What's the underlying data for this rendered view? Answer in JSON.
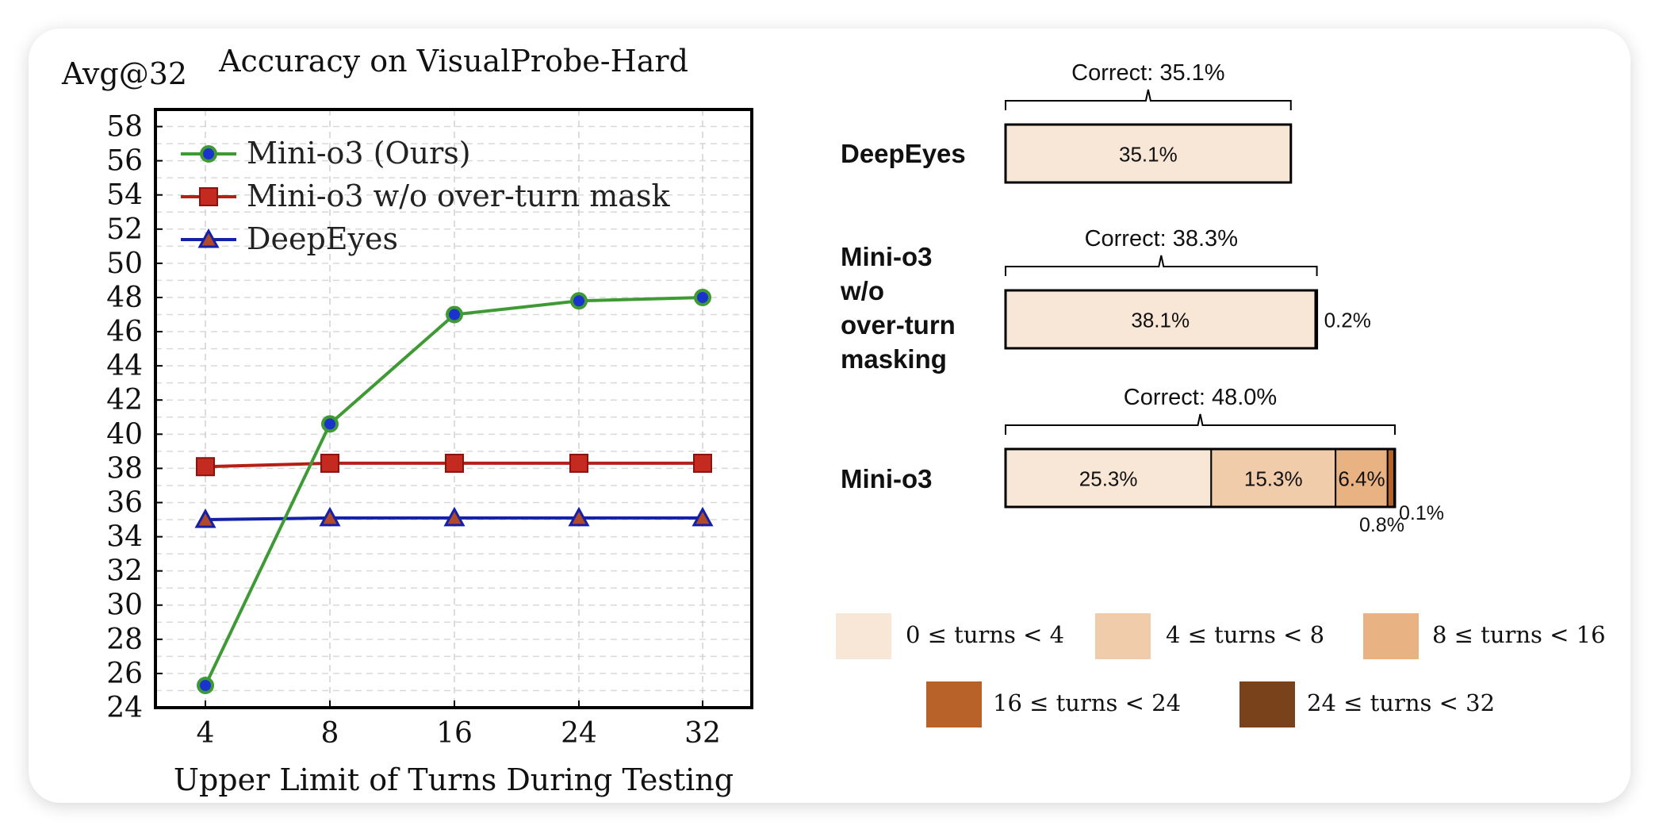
{
  "chart_data": [
    {
      "type": "line",
      "title": "Accuracy on VisualProbe-Hard",
      "ylabel": "Avg@32",
      "xlabel": "Upper Limit of Turns During Testing",
      "categories": [
        "4",
        "8",
        "16",
        "24",
        "32"
      ],
      "ylim": [
        24,
        59
      ],
      "yticks": [
        24,
        26,
        28,
        30,
        32,
        34,
        36,
        38,
        40,
        42,
        44,
        46,
        48,
        50,
        52,
        54,
        56,
        58
      ],
      "grid": true,
      "legend_position": "top-left",
      "series": [
        {
          "name": "Mini-o3 (Ours)",
          "values": [
            25.3,
            40.6,
            47.0,
            47.8,
            48.0
          ],
          "color": "#3f9a35",
          "marker": "circle",
          "marker_fill": "#1a33cc"
        },
        {
          "name": "Mini-o3 w/o over-turn mask",
          "values": [
            38.1,
            38.3,
            38.3,
            38.3,
            38.3
          ],
          "color": "#b32017",
          "marker": "square",
          "marker_fill": "#c42a1f"
        },
        {
          "name": "DeepEyes",
          "values": [
            35.0,
            35.1,
            35.1,
            35.1,
            35.1
          ],
          "color": "#1420a8",
          "marker": "triangle",
          "marker_fill": "#b04a2a"
        }
      ]
    },
    {
      "type": "bar",
      "orientation": "horizontal",
      "stacked": true,
      "xlim": [
        0,
        48.1
      ],
      "bins": [
        "0 ≤ turns < 4",
        "4 ≤ turns < 8",
        "8 ≤ turns < 16",
        "16 ≤ turns < 24",
        "24 ≤ turns < 32"
      ],
      "colors": [
        "#f8e6d6",
        "#f0ccaa",
        "#e8b283",
        "#b8622a",
        "#7a421b"
      ],
      "rows": [
        {
          "label_lines": [
            "DeepEyes"
          ],
          "correct_label": "Correct: 35.1%",
          "segments": [
            {
              "bin": 0,
              "value": 35.1,
              "label": "35.1%",
              "outside": false
            }
          ]
        },
        {
          "label_lines": [
            "Mini-o3",
            "w/o",
            "over-turn",
            "masking"
          ],
          "correct_label": "Correct: 38.3%",
          "segments": [
            {
              "bin": 0,
              "value": 38.1,
              "label": "38.1%",
              "outside": false
            },
            {
              "bin": 1,
              "value": 0.2,
              "label": "0.2%",
              "outside": true
            }
          ]
        },
        {
          "label_lines": [
            "Mini-o3"
          ],
          "correct_label": "Correct: 48.0%",
          "segments": [
            {
              "bin": 0,
              "value": 25.3,
              "label": "25.3%",
              "outside": false
            },
            {
              "bin": 1,
              "value": 15.3,
              "label": "15.3%",
              "outside": false
            },
            {
              "bin": 2,
              "value": 6.4,
              "label": "6.4%",
              "outside": false
            },
            {
              "bin": 3,
              "value": 0.8,
              "label": "0.8%",
              "outside": true
            },
            {
              "bin": 4,
              "value": 0.1,
              "label": "0.1%",
              "outside": true
            }
          ]
        }
      ]
    }
  ]
}
